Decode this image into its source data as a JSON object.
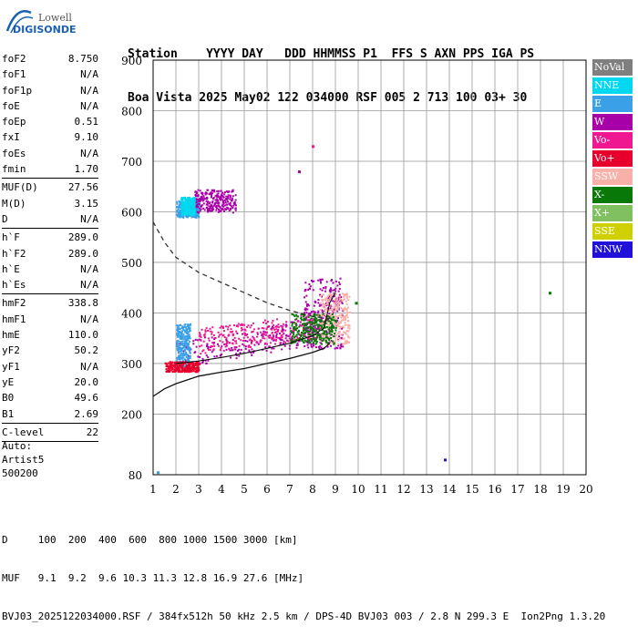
{
  "logo": {
    "line1": "Lowell",
    "line2": "DIGISONDE",
    "color": "#1a5fb4"
  },
  "header": {
    "labels": "Station    YYYY DAY   DDD HHMMSS P1  FFS S AXN PPS IGA PS",
    "values": "Boa Vista 2025 May02 122 034000 RSF 005 2 713 100 03+ 30"
  },
  "params_groups": [
    [
      {
        "label": "foF2",
        "value": "8.750"
      },
      {
        "label": "foF1",
        "value": "N/A"
      },
      {
        "label": "foF1p",
        "value": "N/A"
      },
      {
        "label": "foE",
        "value": "N/A"
      },
      {
        "label": "foEp",
        "value": "0.51"
      },
      {
        "label": "fxI",
        "value": "9.10"
      },
      {
        "label": "foEs",
        "value": "N/A"
      },
      {
        "label": "fmin",
        "value": "1.70"
      }
    ],
    [
      {
        "label": "MUF(D)",
        "value": "27.56"
      },
      {
        "label": "M(D)",
        "value": "3.15"
      },
      {
        "label": "D",
        "value": "N/A"
      }
    ],
    [
      {
        "label": "h`F",
        "value": "289.0"
      },
      {
        "label": "h`F2",
        "value": "289.0"
      },
      {
        "label": "h`E",
        "value": "N/A"
      },
      {
        "label": "h`Es",
        "value": "N/A"
      }
    ],
    [
      {
        "label": "hmF2",
        "value": "338.8"
      },
      {
        "label": "hmF1",
        "value": "N/A"
      },
      {
        "label": "hmE",
        "value": "110.0"
      },
      {
        "label": "yF2",
        "value": "50.2"
      },
      {
        "label": "yF1",
        "value": "N/A"
      },
      {
        "label": "yE",
        "value": "20.0"
      },
      {
        "label": "B0",
        "value": "49.6"
      },
      {
        "label": "B1",
        "value": "2.69"
      }
    ],
    [
      {
        "label": "C-level",
        "value": "22"
      }
    ]
  ],
  "auto": {
    "line1": "Auto:",
    "line2": "Artist5",
    "line3": "500200"
  },
  "legend": [
    {
      "label": "NoVal",
      "color": "#7f7f7f"
    },
    {
      "label": "NNE",
      "color": "#00d8f0"
    },
    {
      "label": "E",
      "color": "#3aa0e8"
    },
    {
      "label": "W",
      "color": "#a800a8"
    },
    {
      "label": "Vo-",
      "color": "#f01890"
    },
    {
      "label": "Vo+",
      "color": "#e8002c"
    },
    {
      "label": "SSW",
      "color": "#f8b0a8"
    },
    {
      "label": "X-",
      "color": "#087808"
    },
    {
      "label": "X+",
      "color": "#80c060"
    },
    {
      "label": "SSE",
      "color": "#d0d000"
    },
    {
      "label": "NNW",
      "color": "#2010d8"
    }
  ],
  "footer": {
    "d_row": "D     100  200  400  600  800 1000 1500 3000 [km]",
    "muf_row": "MUF   9.1  9.2  9.6 10.3 11.3 12.8 16.9 27.6 [MHz]",
    "info": "BVJ03_2025122034000.RSF / 384fx512h 50 kHz 2.5 km / DPS-4D BVJ03 003 / 2.8 N 299.3 E  Ion2Png 1.3.20"
  },
  "chart_data": {
    "type": "scatter",
    "xlabel": "",
    "ylabel": "",
    "xlim": [
      1,
      20
    ],
    "ylim": [
      80,
      900
    ],
    "x_ticks": [
      1,
      2,
      3,
      4,
      5,
      6,
      7,
      8,
      9,
      10,
      11,
      12,
      13,
      14,
      15,
      16,
      17,
      18,
      19,
      20
    ],
    "y_ticks": [
      80,
      200,
      300,
      400,
      500,
      600,
      700,
      800,
      900
    ],
    "grid": true,
    "dashed_curve": [
      [
        1,
        580
      ],
      [
        1.5,
        540
      ],
      [
        2,
        510
      ],
      [
        3,
        480
      ],
      [
        4,
        460
      ],
      [
        5,
        440
      ],
      [
        6,
        420
      ],
      [
        7,
        405
      ],
      [
        8,
        393
      ],
      [
        8.75,
        389
      ]
    ],
    "solid_curve": [
      [
        1,
        235
      ],
      [
        1.5,
        250
      ],
      [
        2,
        260
      ],
      [
        3,
        275
      ],
      [
        4,
        283
      ],
      [
        5,
        290
      ],
      [
        6,
        300
      ],
      [
        7,
        310
      ],
      [
        8,
        322
      ],
      [
        8.5,
        330
      ],
      [
        8.75,
        340
      ]
    ],
    "trace_curve": [
      [
        2,
        300
      ],
      [
        3,
        305
      ],
      [
        4,
        312
      ],
      [
        5,
        320
      ],
      [
        6,
        330
      ],
      [
        7,
        340
      ],
      [
        8,
        355
      ],
      [
        8.5,
        370
      ],
      [
        8.75,
        420
      ],
      [
        9,
        440
      ]
    ],
    "clusters": [
      {
        "color": "#a800a8",
        "x0": 2.0,
        "x1": 8.6,
        "y0": 290,
        "y1": 345,
        "slope": 8
      },
      {
        "color": "#a800a8",
        "x0": 7.6,
        "x1": 9.3,
        "y0": 330,
        "y1": 470,
        "slope": 0
      },
      {
        "color": "#3aa0e8",
        "x0": 2.0,
        "x1": 2.6,
        "y0": 295,
        "y1": 380,
        "slope": 0
      },
      {
        "color": "#3aa0e8",
        "x0": 2.0,
        "x1": 3.0,
        "y0": 590,
        "y1": 625,
        "slope": 0
      },
      {
        "color": "#a800a8",
        "x0": 2.8,
        "x1": 4.6,
        "y0": 600,
        "y1": 645,
        "slope": 0
      },
      {
        "color": "#e8002c",
        "x0": 1.5,
        "x1": 3.0,
        "y0": 285,
        "y1": 305,
        "slope": 0
      },
      {
        "color": "#f8b0a8",
        "x0": 8.3,
        "x1": 9.6,
        "y0": 340,
        "y1": 440,
        "slope": 0
      },
      {
        "color": "#f01890",
        "x0": 3.0,
        "x1": 8.3,
        "y0": 320,
        "y1": 370,
        "slope": 6
      },
      {
        "color": "#00d8f0",
        "x0": 2.2,
        "x1": 2.8,
        "y0": 595,
        "y1": 630,
        "slope": 0
      },
      {
        "color": "#087808",
        "x0": 7.0,
        "x1": 9.0,
        "y0": 340,
        "y1": 400,
        "slope": 0
      }
    ],
    "isolated_points": [
      {
        "x": 18.4,
        "y": 440,
        "color": "#087808"
      },
      {
        "x": 13.8,
        "y": 110,
        "color": "#2010d8"
      },
      {
        "x": 8.0,
        "y": 730,
        "color": "#f01890"
      },
      {
        "x": 7.4,
        "y": 680,
        "color": "#a800a8"
      },
      {
        "x": 9.9,
        "y": 420,
        "color": "#087808"
      },
      {
        "x": 1.2,
        "y": 85,
        "color": "#3aa0e8"
      }
    ]
  }
}
